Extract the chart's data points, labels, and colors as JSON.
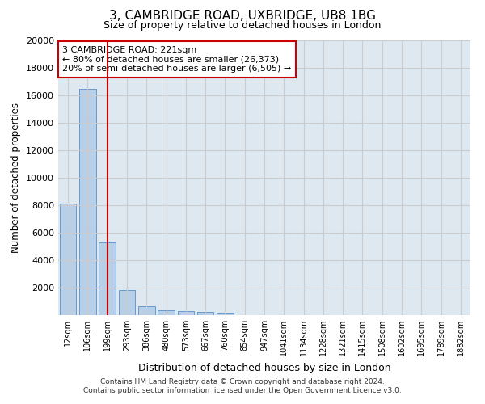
{
  "title": "3, CAMBRIDGE ROAD, UXBRIDGE, UB8 1BG",
  "subtitle": "Size of property relative to detached houses in London",
  "xlabel": "Distribution of detached houses by size in London",
  "ylabel": "Number of detached properties",
  "categories": [
    "12sqm",
    "106sqm",
    "199sqm",
    "293sqm",
    "386sqm",
    "480sqm",
    "573sqm",
    "667sqm",
    "760sqm",
    "854sqm",
    "947sqm",
    "1041sqm",
    "1134sqm",
    "1228sqm",
    "1321sqm",
    "1415sqm",
    "1508sqm",
    "1602sqm",
    "1695sqm",
    "1789sqm",
    "1882sqm"
  ],
  "bar_heights": [
    8100,
    16500,
    5300,
    1850,
    650,
    350,
    280,
    220,
    170,
    0,
    0,
    0,
    0,
    0,
    0,
    0,
    0,
    0,
    0,
    0,
    0
  ],
  "bar_color": "#b8cfe8",
  "bar_edge_color": "#6699cc",
  "vline_x": 2,
  "vline_color": "#cc0000",
  "annotation_text": "3 CAMBRIDGE ROAD: 221sqm\n← 80% of detached houses are smaller (26,373)\n20% of semi-detached houses are larger (6,505) →",
  "annotation_box_color": "#cc0000",
  "annotation_bg": "#ffffff",
  "ylim": [
    0,
    20000
  ],
  "yticks": [
    0,
    2000,
    4000,
    6000,
    8000,
    10000,
    12000,
    14000,
    16000,
    18000,
    20000
  ],
  "grid_color": "#cccccc",
  "bg_color": "#dde8f0",
  "footer_line1": "Contains HM Land Registry data © Crown copyright and database right 2024.",
  "footer_line2": "Contains public sector information licensed under the Open Government Licence v3.0."
}
